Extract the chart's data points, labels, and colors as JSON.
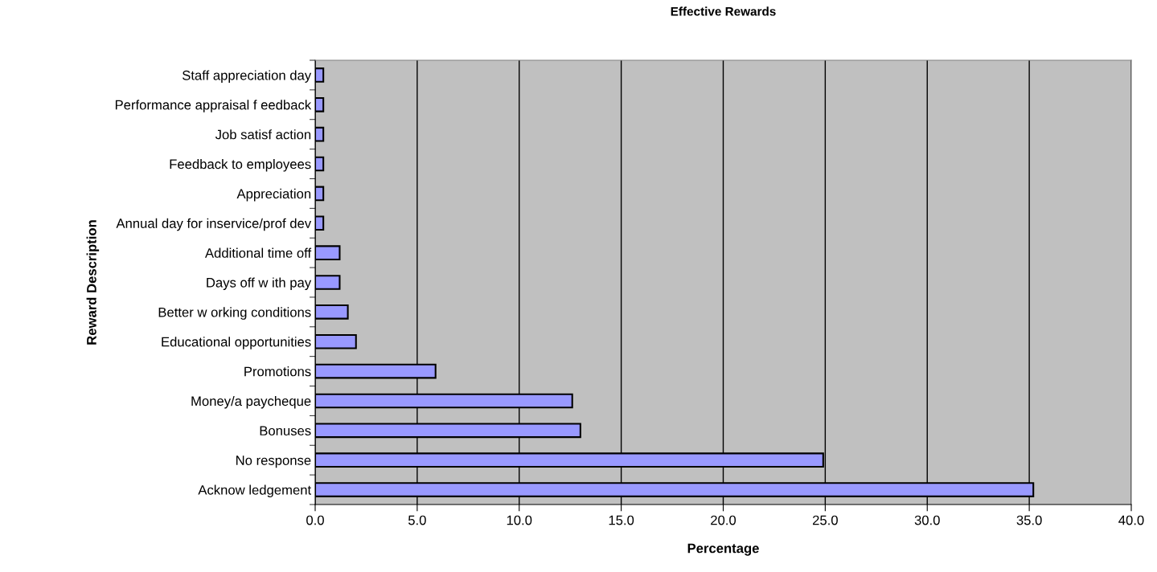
{
  "chart_data": {
    "type": "bar",
    "orientation": "horizontal",
    "title": "Effective Rewards",
    "xlabel": "Percentage",
    "ylabel": "Reward Description",
    "categories": [
      "Staff appreciation day",
      "Performance appraisal f eedback",
      "Job satisf action",
      "Feedback to employees",
      "Appreciation",
      "Annual day for inservice/prof dev",
      "Additional time off",
      "Days off w ith pay",
      "Better w orking conditions",
      "Educational opportunities",
      "Promotions",
      "Money/a paycheque",
      "Bonuses",
      "No response",
      "Acknow ledgement"
    ],
    "values": [
      0.4,
      0.4,
      0.4,
      0.4,
      0.4,
      0.4,
      1.2,
      1.2,
      1.6,
      2.0,
      5.9,
      12.6,
      13.0,
      24.9,
      35.2
    ],
    "color": "#9999ff",
    "xlim": [
      0,
      40
    ],
    "xticks": [
      {
        "value": 0,
        "label": "0.0"
      },
      {
        "value": 5,
        "label": "5.0"
      },
      {
        "value": 10,
        "label": "10.0"
      },
      {
        "value": 15,
        "label": "15.0"
      },
      {
        "value": 20,
        "label": "20.0"
      },
      {
        "value": 25,
        "label": "25.0"
      },
      {
        "value": 30,
        "label": "30.0"
      },
      {
        "value": 35,
        "label": "35.0"
      },
      {
        "value": 40,
        "label": "40.0"
      }
    ],
    "grid": "x",
    "legend": false
  }
}
